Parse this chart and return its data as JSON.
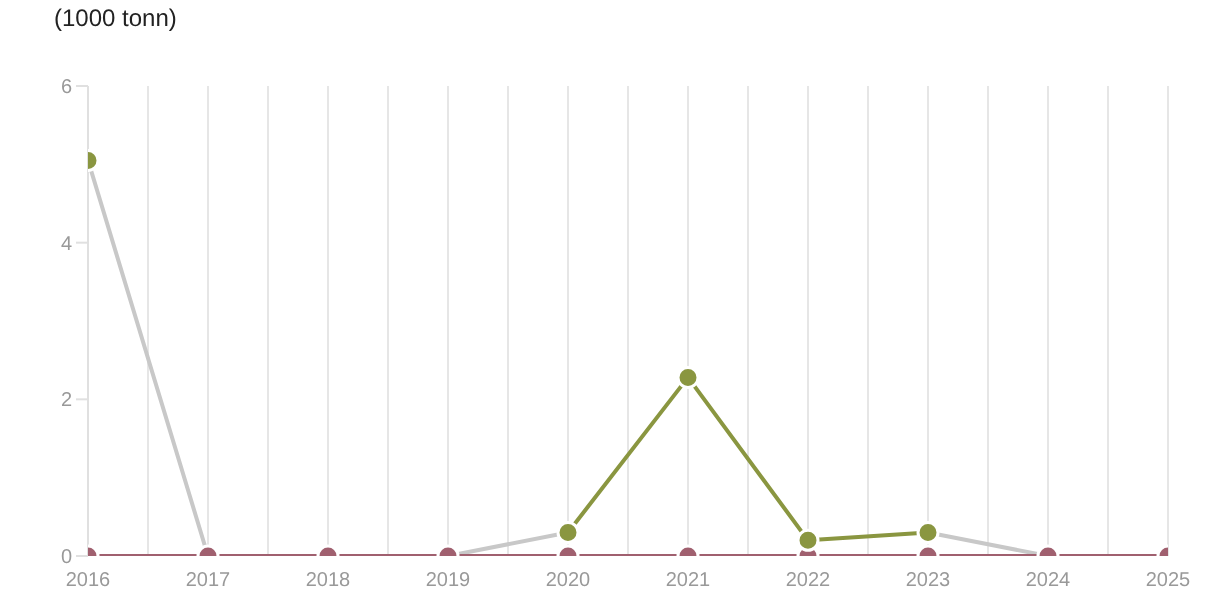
{
  "chart_data": {
    "type": "line",
    "title": "(1000 tonn)",
    "categories": [
      "2016",
      "2017",
      "2018",
      "2019",
      "2020",
      "2021",
      "2022",
      "2023",
      "2024",
      "2025"
    ],
    "series": [
      {
        "color": "#c8c8c8",
        "marker": "none",
        "values": [
          5.05,
          0,
          null,
          0,
          0.3,
          null,
          null,
          0.3,
          0,
          null
        ]
      },
      {
        "color": "#a0606f",
        "marker": "circle",
        "values": [
          0,
          0,
          0,
          0,
          0,
          0,
          0,
          0,
          0,
          0
        ]
      },
      {
        "color": "#8a9640",
        "marker": "circle",
        "values": [
          5.05,
          null,
          null,
          null,
          0.3,
          2.28,
          0.2,
          0.3,
          null,
          null
        ]
      }
    ],
    "ylim": [
      0,
      6
    ],
    "yticks": [
      0,
      2,
      4,
      6
    ],
    "grid": "x"
  }
}
